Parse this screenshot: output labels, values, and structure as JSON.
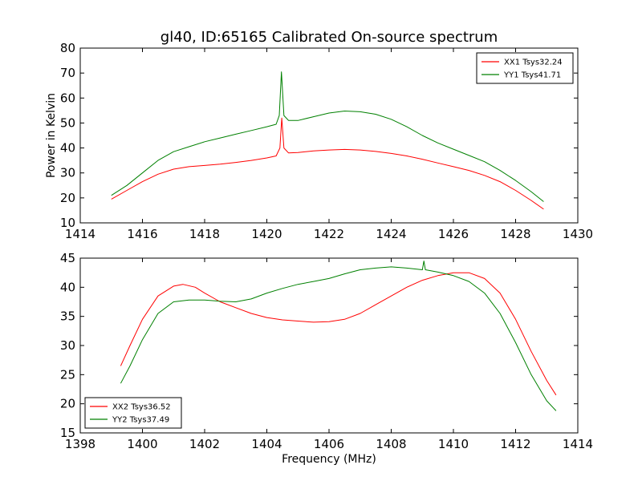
{
  "chart_data": [
    {
      "type": "line",
      "title": "gl40, ID:65165 Calibrated On-source spectrum",
      "xlabel": "",
      "ylabel": "Power in Kelvin",
      "xlim": [
        1414,
        1430
      ],
      "ylim": [
        10,
        80
      ],
      "x_ticks": [
        1414,
        1416,
        1418,
        1420,
        1422,
        1424,
        1426,
        1428,
        1430
      ],
      "y_ticks": [
        10,
        20,
        30,
        40,
        50,
        60,
        70,
        80
      ],
      "legend_position": "top-right",
      "grid": false,
      "series": [
        {
          "name": "XX1 Tsys32.24",
          "color": "#ff0000",
          "points": [
            [
              1415.0,
              19.5
            ],
            [
              1415.5,
              23.0
            ],
            [
              1416.0,
              26.5
            ],
            [
              1416.5,
              29.5
            ],
            [
              1417.0,
              31.5
            ],
            [
              1417.5,
              32.5
            ],
            [
              1418.0,
              33.0
            ],
            [
              1418.5,
              33.5
            ],
            [
              1419.0,
              34.2
            ],
            [
              1419.5,
              35.0
            ],
            [
              1420.0,
              36.0
            ],
            [
              1420.3,
              36.8
            ],
            [
              1420.42,
              40.0
            ],
            [
              1420.48,
              52.0
            ],
            [
              1420.55,
              40.0
            ],
            [
              1420.7,
              38.0
            ],
            [
              1421.0,
              38.2
            ],
            [
              1421.5,
              38.8
            ],
            [
              1422.0,
              39.2
            ],
            [
              1422.5,
              39.4
            ],
            [
              1423.0,
              39.2
            ],
            [
              1423.5,
              38.6
            ],
            [
              1424.0,
              37.8
            ],
            [
              1424.5,
              36.8
            ],
            [
              1425.0,
              35.5
            ],
            [
              1425.5,
              34.0
            ],
            [
              1426.0,
              32.5
            ],
            [
              1426.5,
              31.0
            ],
            [
              1427.0,
              29.0
            ],
            [
              1427.5,
              26.5
            ],
            [
              1428.0,
              23.0
            ],
            [
              1428.5,
              19.0
            ],
            [
              1428.9,
              15.5
            ]
          ]
        },
        {
          "name": "YY1 Tsys41.71",
          "color": "#008000",
          "points": [
            [
              1415.0,
              21.0
            ],
            [
              1415.5,
              25.0
            ],
            [
              1416.0,
              30.0
            ],
            [
              1416.5,
              35.0
            ],
            [
              1417.0,
              38.5
            ],
            [
              1417.5,
              40.5
            ],
            [
              1418.0,
              42.5
            ],
            [
              1418.5,
              44.0
            ],
            [
              1419.0,
              45.5
            ],
            [
              1419.5,
              47.0
            ],
            [
              1420.0,
              48.5
            ],
            [
              1420.3,
              49.5
            ],
            [
              1420.4,
              53.0
            ],
            [
              1420.47,
              70.5
            ],
            [
              1420.55,
              53.0
            ],
            [
              1420.7,
              51.0
            ],
            [
              1421.0,
              51.0
            ],
            [
              1421.5,
              52.5
            ],
            [
              1422.0,
              54.0
            ],
            [
              1422.5,
              54.8
            ],
            [
              1423.0,
              54.5
            ],
            [
              1423.5,
              53.5
            ],
            [
              1424.0,
              51.5
            ],
            [
              1424.5,
              48.5
            ],
            [
              1425.0,
              45.0
            ],
            [
              1425.5,
              42.0
            ],
            [
              1426.0,
              39.5
            ],
            [
              1426.5,
              37.0
            ],
            [
              1427.0,
              34.5
            ],
            [
              1427.5,
              31.0
            ],
            [
              1428.0,
              27.0
            ],
            [
              1428.5,
              22.5
            ],
            [
              1428.9,
              18.5
            ]
          ]
        }
      ]
    },
    {
      "type": "line",
      "title": "",
      "xlabel": "Frequency (MHz)",
      "ylabel": "",
      "xlim": [
        1398,
        1414
      ],
      "ylim": [
        15,
        45
      ],
      "x_ticks": [
        1398,
        1400,
        1402,
        1404,
        1406,
        1408,
        1410,
        1412,
        1414
      ],
      "y_ticks": [
        15,
        20,
        25,
        30,
        35,
        40,
        45
      ],
      "legend_position": "bottom-left",
      "grid": false,
      "series": [
        {
          "name": "XX2 Tsys36.52",
          "color": "#ff0000",
          "points": [
            [
              1399.3,
              26.5
            ],
            [
              1399.6,
              30.0
            ],
            [
              1400.0,
              34.5
            ],
            [
              1400.5,
              38.5
            ],
            [
              1401.0,
              40.2
            ],
            [
              1401.3,
              40.5
            ],
            [
              1401.7,
              40.0
            ],
            [
              1402.0,
              39.0
            ],
            [
              1402.5,
              37.5
            ],
            [
              1403.0,
              36.5
            ],
            [
              1403.5,
              35.5
            ],
            [
              1404.0,
              34.8
            ],
            [
              1404.5,
              34.4
            ],
            [
              1405.0,
              34.2
            ],
            [
              1405.5,
              34.0
            ],
            [
              1406.0,
              34.1
            ],
            [
              1406.5,
              34.5
            ],
            [
              1407.0,
              35.5
            ],
            [
              1407.5,
              37.0
            ],
            [
              1408.0,
              38.5
            ],
            [
              1408.5,
              40.0
            ],
            [
              1409.0,
              41.2
            ],
            [
              1409.5,
              42.0
            ],
            [
              1410.0,
              42.5
            ],
            [
              1410.5,
              42.5
            ],
            [
              1411.0,
              41.5
            ],
            [
              1411.5,
              39.0
            ],
            [
              1412.0,
              34.5
            ],
            [
              1412.5,
              29.0
            ],
            [
              1413.0,
              24.0
            ],
            [
              1413.3,
              21.5
            ]
          ]
        },
        {
          "name": "YY2 Tsys37.49",
          "color": "#008000",
          "points": [
            [
              1399.3,
              23.5
            ],
            [
              1399.6,
              26.5
            ],
            [
              1400.0,
              31.0
            ],
            [
              1400.5,
              35.5
            ],
            [
              1401.0,
              37.5
            ],
            [
              1401.5,
              37.8
            ],
            [
              1402.0,
              37.8
            ],
            [
              1402.5,
              37.6
            ],
            [
              1403.0,
              37.5
            ],
            [
              1403.5,
              38.0
            ],
            [
              1404.0,
              39.0
            ],
            [
              1404.5,
              39.8
            ],
            [
              1405.0,
              40.5
            ],
            [
              1405.5,
              41.0
            ],
            [
              1406.0,
              41.5
            ],
            [
              1406.5,
              42.3
            ],
            [
              1407.0,
              43.0
            ],
            [
              1407.5,
              43.3
            ],
            [
              1408.0,
              43.5
            ],
            [
              1408.5,
              43.3
            ],
            [
              1409.0,
              43.0
            ],
            [
              1409.05,
              44.5
            ],
            [
              1409.1,
              43.0
            ],
            [
              1409.5,
              42.6
            ],
            [
              1410.0,
              42.0
            ],
            [
              1410.5,
              41.0
            ],
            [
              1411.0,
              39.0
            ],
            [
              1411.5,
              35.5
            ],
            [
              1412.0,
              30.5
            ],
            [
              1412.5,
              25.0
            ],
            [
              1413.0,
              20.5
            ],
            [
              1413.3,
              18.8
            ]
          ]
        }
      ]
    }
  ]
}
